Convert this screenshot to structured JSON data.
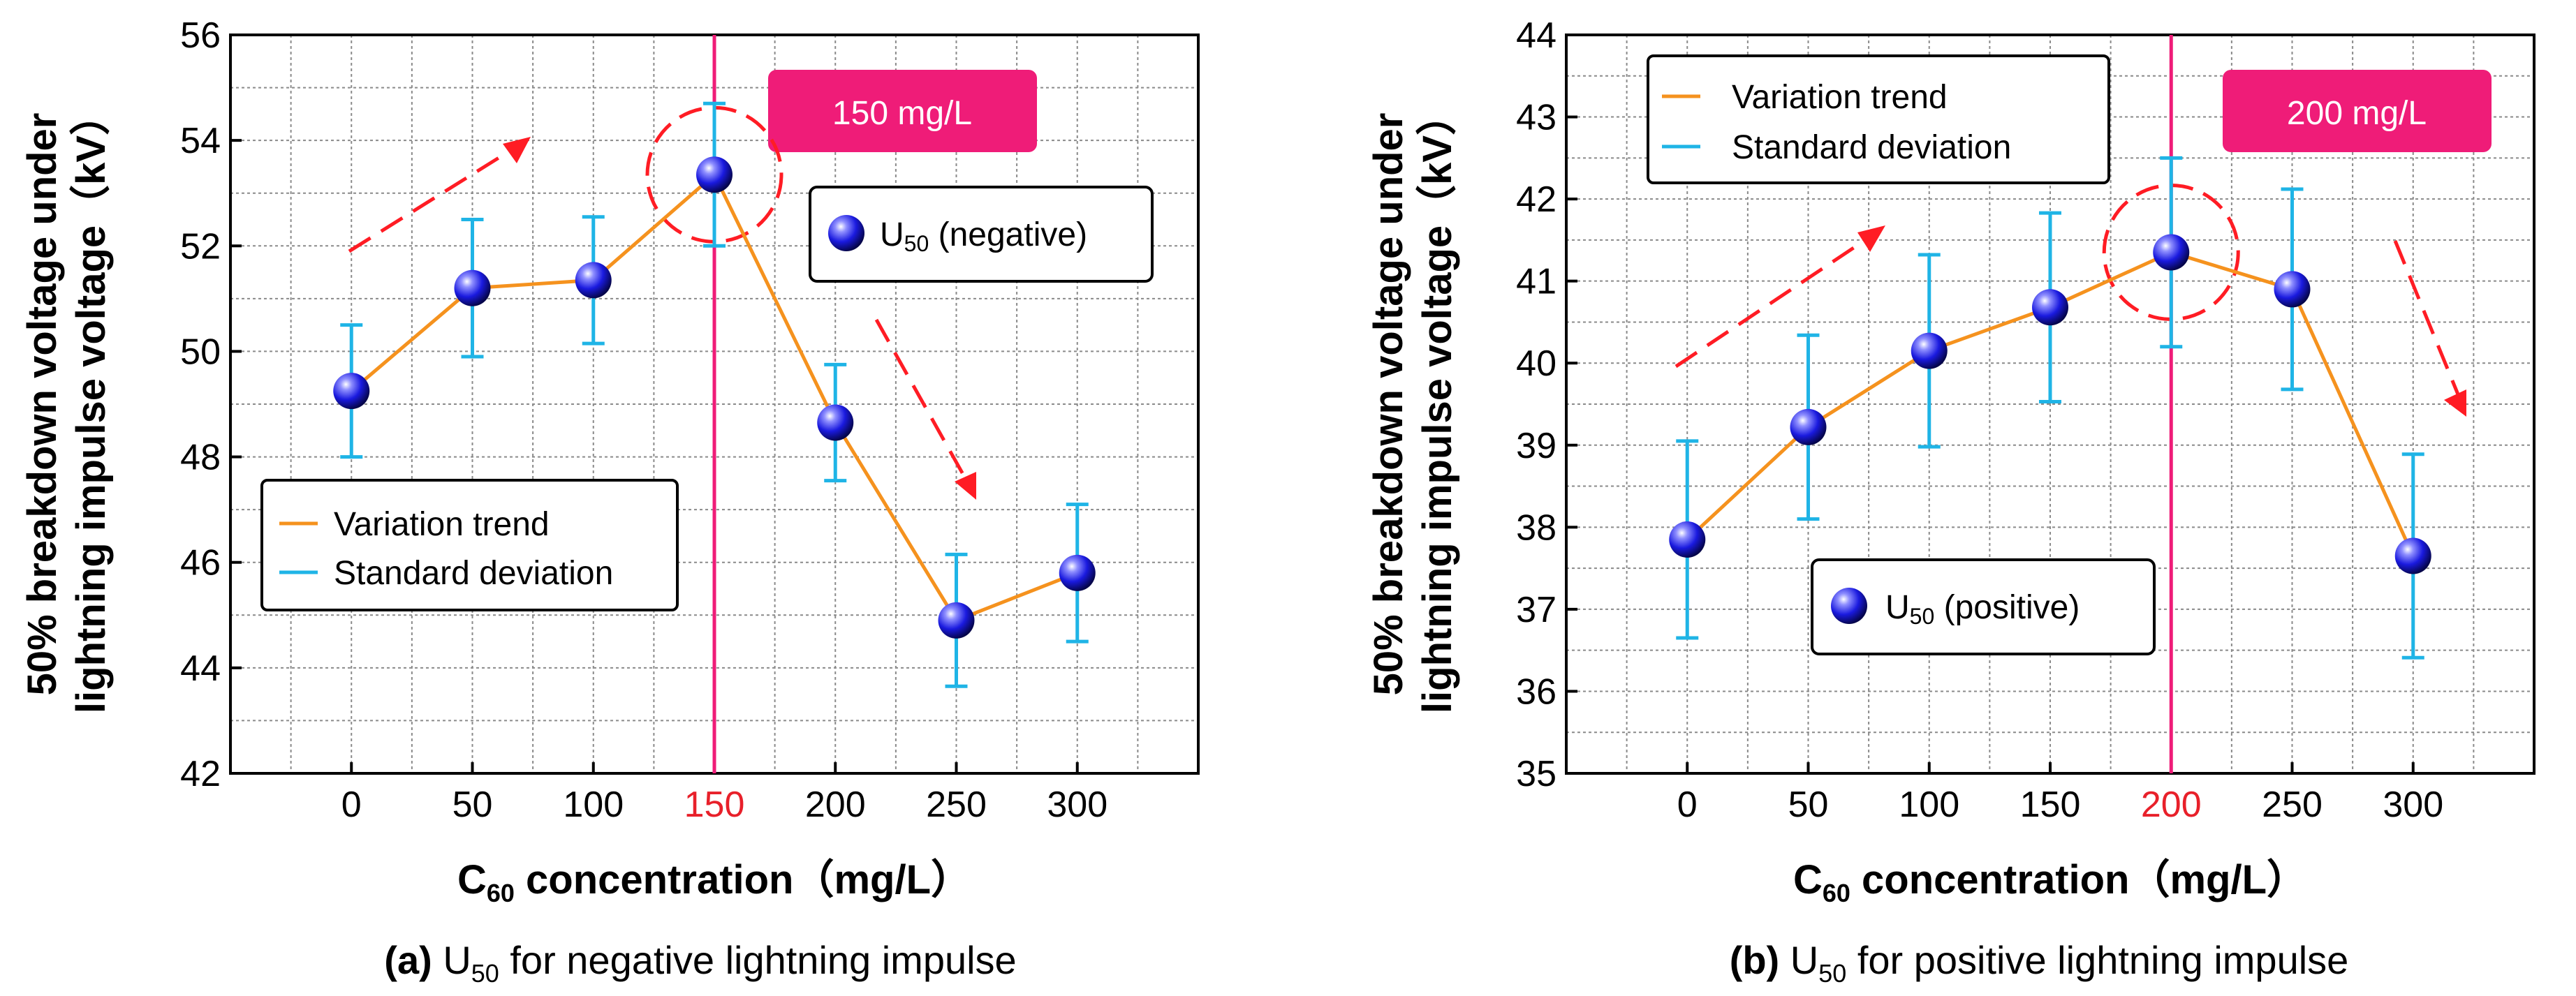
{
  "chart_data": [
    {
      "type": "line",
      "panel": "a",
      "caption_prefix": "(a)",
      "caption_u": "U",
      "caption_sub": "50",
      "caption_rest": " for negative lightning impulse",
      "x": [
        0,
        50,
        100,
        150,
        200,
        250,
        300
      ],
      "x_ticks": [
        "0",
        "50",
        "100",
        "150",
        "200",
        "250",
        "300"
      ],
      "highlight_x": 150,
      "highlight_label": "150 mg/L",
      "xlim": [
        -50,
        350
      ],
      "ylim": [
        42,
        56
      ],
      "y_ticks": [
        "42",
        "44",
        "46",
        "48",
        "50",
        "52",
        "54",
        "56"
      ],
      "series": [
        {
          "name": "U50 (negative)",
          "values": [
            49.25,
            51.2,
            51.35,
            53.35,
            48.65,
            44.9,
            45.8
          ],
          "errors": [
            1.25,
            1.3,
            1.2,
            1.35,
            1.1,
            1.25,
            1.3
          ]
        }
      ],
      "trend_label": "Variation trend",
      "std_label": "Standard deviation",
      "marker_u": "U",
      "marker_sub": "50",
      "marker_rest": " (negative)",
      "xlabel_c": "C",
      "xlabel_sub": "60",
      "xlabel_rest": " concentration（mg/L）",
      "ylabel_line1": "50% breakdown voltage under",
      "ylabel_line2": "lightning impulse voltage（kV）",
      "colors": {
        "trend": "#f5921e",
        "error": "#1fb4e6",
        "highlight": "#ef1c78",
        "arrow": "#ff1c24",
        "marker": "#1a1adf",
        "tick_red": "#e8202a"
      }
    },
    {
      "type": "line",
      "panel": "b",
      "caption_prefix": "(b)",
      "caption_u": "U",
      "caption_sub": "50",
      "caption_rest": " for positive lightning impulse",
      "x": [
        0,
        50,
        100,
        150,
        200,
        250,
        300
      ],
      "x_ticks": [
        "0",
        "50",
        "100",
        "150",
        "200",
        "250",
        "300"
      ],
      "highlight_x": 200,
      "highlight_label": "200 mg/L",
      "xlim": [
        -50,
        350
      ],
      "ylim": [
        35,
        44
      ],
      "y_ticks": [
        "35",
        "36",
        "37",
        "38",
        "39",
        "40",
        "41",
        "42",
        "43",
        "44"
      ],
      "series": [
        {
          "name": "U50 (positive)",
          "values": [
            37.85,
            39.22,
            40.15,
            40.68,
            41.35,
            40.9,
            37.65
          ],
          "errors": [
            1.2,
            1.12,
            1.17,
            1.15,
            1.15,
            1.22,
            1.24
          ]
        }
      ],
      "trend_label": "Variation trend",
      "std_label": "Standard deviation",
      "marker_u": "U",
      "marker_sub": "50",
      "marker_rest": " (positive)",
      "xlabel_c": "C",
      "xlabel_sub": "60",
      "xlabel_rest": " concentration（mg/L）",
      "ylabel_line1": "50% breakdown voltage under",
      "ylabel_line2": "lightning impulse voltage（kV）",
      "colors": {
        "trend": "#f5921e",
        "error": "#1fb4e6",
        "highlight": "#ef1c78",
        "arrow": "#ff1c24",
        "marker": "#1a1adf",
        "tick_red": "#e8202a"
      }
    }
  ]
}
